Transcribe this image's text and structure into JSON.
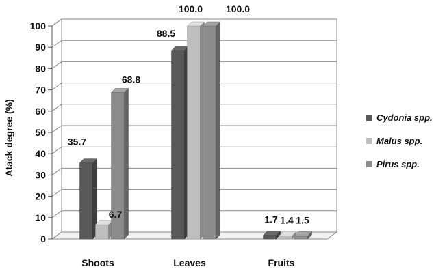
{
  "chart_data": {
    "type": "bar",
    "categories": [
      "Shoots",
      "Leaves",
      "Fruits"
    ],
    "series": [
      {
        "name": "Cydonia spp.",
        "values": [
          35.7,
          88.5,
          1.7
        ],
        "labels": [
          "35.7",
          "88.5",
          "1.7"
        ],
        "color": "#595959"
      },
      {
        "name": "Malus spp.",
        "values": [
          6.7,
          100.0,
          1.4
        ],
        "labels": [
          "6.7",
          "100.0",
          "1.4"
        ],
        "color": "#bfbfbf"
      },
      {
        "name": "Pirus spp.",
        "values": [
          68.8,
          100.0,
          1.5
        ],
        "labels": [
          "68.8",
          "100.0",
          "1.5"
        ],
        "color": "#8c8c8c"
      }
    ],
    "ylabel": "Atack degree (%)",
    "ylim": [
      0,
      100
    ],
    "yticks": [
      "0",
      "10",
      "20",
      "30",
      "40",
      "50",
      "60",
      "70",
      "80",
      "90",
      "100"
    ],
    "grid": true,
    "legend_position": "right",
    "three_d": true
  }
}
